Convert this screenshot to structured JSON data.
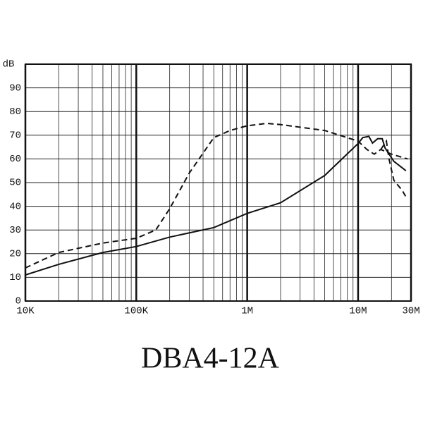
{
  "chart_data": {
    "type": "line",
    "title": "DBA4-12A",
    "y_label": "dB",
    "log_x": true,
    "grid": true,
    "xlim": [
      10000,
      30000000
    ],
    "ylim": [
      0,
      100
    ],
    "xticks": [
      {
        "value": 10000,
        "label": "10K"
      },
      {
        "value": 100000,
        "label": "100K"
      },
      {
        "value": 1000000,
        "label": "1M"
      },
      {
        "value": 10000000,
        "label": "10M"
      },
      {
        "value": 30000000,
        "label": "30M"
      }
    ],
    "yticks": [
      0,
      10,
      20,
      30,
      40,
      50,
      60,
      70,
      80,
      90
    ],
    "series": [
      {
        "color": "#111111",
        "dash": false,
        "x": [
          10000,
          20000,
          50000,
          100000,
          200000,
          500000,
          1000000,
          2000000,
          5000000,
          10000000,
          11000000,
          12500000,
          13500000,
          15000000,
          16500000,
          17500000,
          21000000,
          27000000
        ],
        "values": [
          11,
          15.5,
          20.5,
          23,
          27,
          31,
          37,
          41.5,
          53,
          66.5,
          69,
          69.5,
          66.7,
          68.5,
          68.5,
          64.6,
          59,
          55
        ]
      },
      {
        "color": "#111111",
        "dash": true,
        "x": [
          10000,
          20000,
          50000,
          100000,
          150000,
          200000,
          300000,
          500000,
          700000,
          1000000,
          1500000,
          2000000,
          5000000,
          10000000,
          12000000,
          14000000,
          16000000,
          20000000,
          28000000
        ],
        "values": [
          14,
          20.5,
          24.5,
          26.5,
          30,
          39,
          54,
          69,
          72,
          74,
          75,
          74.5,
          72,
          67.5,
          64,
          62,
          64,
          62,
          60
        ]
      },
      {
        "color": "#111111",
        "dash": true,
        "x": [
          16000000,
          18000000,
          19000000,
          21000000,
          25000000,
          27000000
        ],
        "values": [
          64,
          67.5,
          60,
          51,
          46.7,
          44
        ]
      }
    ]
  }
}
